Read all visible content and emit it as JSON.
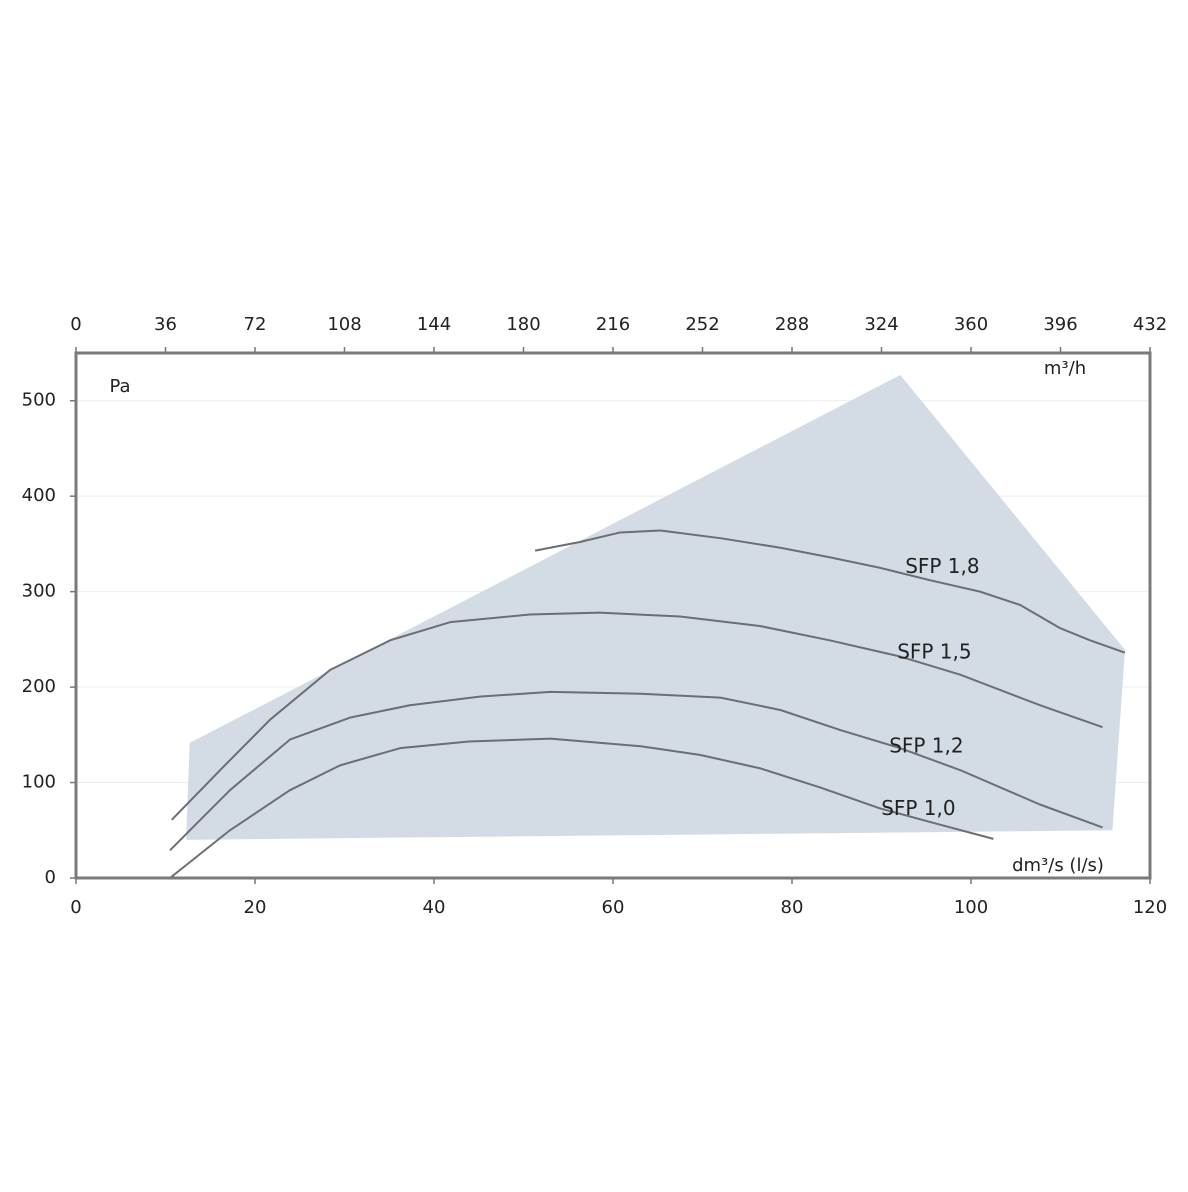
{
  "chart_data": {
    "type": "line",
    "x_label": "dm³/s (l/s)",
    "x2_label": "m³/h",
    "y_label": "Pa",
    "xlim": [
      0,
      120
    ],
    "xticks": [
      0,
      20,
      40,
      60,
      80,
      100,
      120
    ],
    "x2lim": [
      0,
      432
    ],
    "x2ticks": [
      0,
      36,
      72,
      108,
      144,
      180,
      216,
      252,
      288,
      324,
      360,
      396,
      432
    ],
    "ylim": [
      0,
      550
    ],
    "yticks": [
      0,
      100,
      200,
      300,
      400,
      500
    ],
    "grid": true,
    "range": {
      "color": "#d3dce4",
      "x": [
        12.7,
        92.1,
        117.2,
        115.8,
        12.3
      ],
      "y": [
        141.5,
        527,
        239,
        50,
        40
      ]
    },
    "series": [
      {
        "name": "SFP 1,8",
        "color": "#6b6e74",
        "x": [
          51.3,
          56.3,
          60.8,
          65.3,
          72,
          78.7,
          84.2,
          89.8,
          95.4,
          101,
          105.5,
          109.9,
          113.3,
          117.2
        ],
        "values": [
          343,
          352,
          362,
          364,
          356,
          346,
          336,
          325,
          312,
          300,
          286,
          262,
          249,
          236
        ]
      },
      {
        "name": "SFP 1,5",
        "color": "#6b6e74",
        "x": [
          10.7,
          16.1,
          21.7,
          28.4,
          35.1,
          41.8,
          50.7,
          58.5,
          67.5,
          76.4,
          84.2,
          92.1,
          98.8,
          107.7,
          114.7
        ],
        "values": [
          61,
          113,
          166,
          218,
          249,
          268,
          276,
          278,
          274,
          264,
          249,
          232,
          213,
          181,
          158
        ]
      },
      {
        "name": "SFP 1,2",
        "color": "#6b6e74",
        "x": [
          10.5,
          17.2,
          23.9,
          30.6,
          37.3,
          45.1,
          53,
          63.1,
          72,
          78.7,
          85.4,
          92.1,
          98.8,
          107.7,
          114.7
        ],
        "values": [
          29,
          92,
          145,
          168,
          181,
          190,
          195,
          193,
          189,
          176,
          155,
          136,
          113,
          77,
          53
        ]
      },
      {
        "name": "SFP 1,0",
        "color": "#6b6e74",
        "x": [
          10.5,
          17.2,
          23.9,
          29.5,
          36.2,
          43.9,
          53,
          63.1,
          69.7,
          76.4,
          83.1,
          89.8,
          96.5,
          102.5
        ],
        "values": [
          0,
          50,
          92,
          118,
          136,
          143,
          146,
          138,
          129,
          115,
          95,
          73,
          56,
          41
        ]
      }
    ]
  }
}
